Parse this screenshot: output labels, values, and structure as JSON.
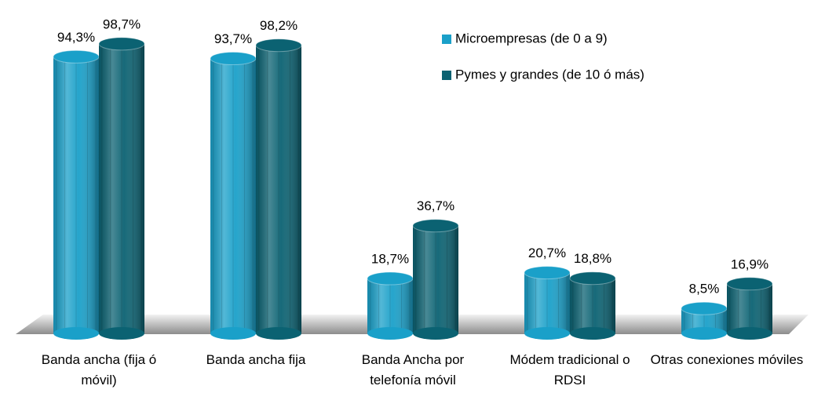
{
  "chart_data": {
    "type": "bar",
    "categories": [
      "Banda ancha (fija ó móvil)",
      "Banda ancha fija",
      "Banda Ancha por telefonía móvil",
      "Módem tradicional o RDSI",
      "Otras conexiones móviles"
    ],
    "series": [
      {
        "name": "Microempresas (de 0 a 9)",
        "color": "#1aa0c9",
        "values": [
          94.3,
          93.7,
          18.7,
          20.7,
          8.5
        ],
        "value_labels": [
          "94,3%",
          "93,7%",
          "18,7%",
          "20,7%",
          "8,5%"
        ]
      },
      {
        "name": "Pymes y grandes (de 10 ó más)",
        "color": "#0b6272",
        "values": [
          98.7,
          98.2,
          36.7,
          18.8,
          16.9
        ],
        "value_labels": [
          "98,7%",
          "98,2%",
          "36,7%",
          "18,8%",
          "16,9%"
        ]
      }
    ]
  }
}
